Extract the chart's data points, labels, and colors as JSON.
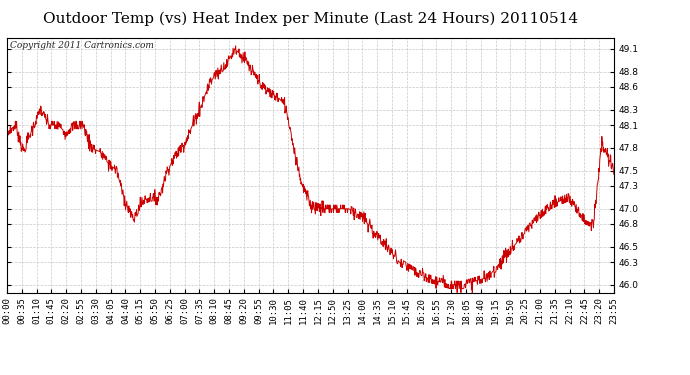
{
  "title": "Outdoor Temp (vs) Heat Index per Minute (Last 24 Hours) 20110514",
  "copyright": "Copyright 2011 Cartronics.com",
  "line_color": "#cc0000",
  "bg_color": "#ffffff",
  "plot_bg_color": "#ffffff",
  "grid_color": "#c8c8c8",
  "yticks": [
    46.0,
    46.3,
    46.5,
    46.8,
    47.0,
    47.3,
    47.5,
    47.8,
    48.1,
    48.3,
    48.6,
    48.8,
    49.1
  ],
  "ylim": [
    45.9,
    49.25
  ],
  "title_fontsize": 11,
  "copyright_fontsize": 6.5,
  "tick_fontsize": 6.5,
  "x_tick_labels": [
    "00:00",
    "00:35",
    "01:10",
    "01:45",
    "02:20",
    "02:55",
    "03:30",
    "04:05",
    "04:40",
    "05:15",
    "05:50",
    "06:25",
    "07:00",
    "07:35",
    "08:10",
    "08:45",
    "09:20",
    "09:55",
    "10:30",
    "11:05",
    "11:40",
    "12:15",
    "12:50",
    "13:25",
    "14:00",
    "14:35",
    "15:10",
    "15:45",
    "16:20",
    "16:55",
    "17:30",
    "18:05",
    "18:40",
    "19:15",
    "19:50",
    "20:25",
    "21:00",
    "21:35",
    "22:10",
    "22:45",
    "23:20",
    "23:55"
  ],
  "key_x": [
    0,
    20,
    40,
    60,
    80,
    100,
    120,
    140,
    160,
    180,
    200,
    220,
    240,
    260,
    280,
    300,
    320,
    340,
    360,
    380,
    400,
    420,
    440,
    460,
    480,
    500,
    520,
    540,
    560,
    580,
    600,
    615,
    630,
    645,
    660,
    670,
    680,
    700,
    720,
    750,
    780,
    810,
    840,
    870,
    900,
    930,
    960,
    990,
    1020,
    1050,
    1080,
    1110,
    1140,
    1170,
    1200,
    1230,
    1260,
    1290,
    1310,
    1330,
    1350,
    1370,
    1390,
    1410,
    1439
  ],
  "key_y": [
    48.0,
    48.1,
    47.75,
    48.05,
    48.3,
    48.1,
    48.1,
    48.0,
    48.1,
    48.1,
    47.8,
    47.75,
    47.6,
    47.5,
    47.1,
    46.85,
    47.1,
    47.15,
    47.15,
    47.5,
    47.7,
    47.85,
    48.1,
    48.35,
    48.65,
    48.8,
    48.9,
    49.1,
    49.0,
    48.8,
    48.65,
    48.55,
    48.5,
    48.45,
    48.35,
    48.1,
    47.8,
    47.3,
    47.05,
    47.0,
    47.0,
    47.0,
    46.9,
    46.7,
    46.5,
    46.3,
    46.2,
    46.1,
    46.05,
    46.0,
    46.0,
    46.05,
    46.1,
    46.3,
    46.5,
    46.7,
    46.9,
    47.05,
    47.1,
    47.15,
    47.0,
    46.85,
    46.8,
    47.85,
    47.5
  ]
}
